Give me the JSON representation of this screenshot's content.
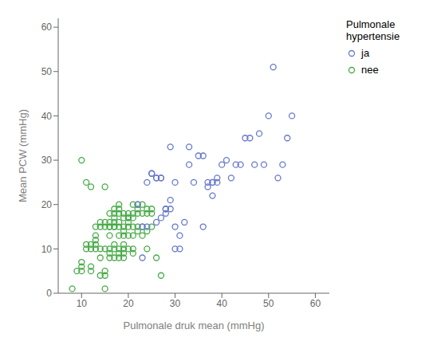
{
  "chart_data": {
    "type": "scatter",
    "title": "",
    "xlabel": "Pulmonale druk mean (mmHg)",
    "ylabel": "Mean PCW (mmHg)",
    "legend_title": "Pulmonale\nhypertensie",
    "xlim": [
      5,
      63
    ],
    "ylim": [
      0,
      62
    ],
    "xticks": [
      10,
      20,
      30,
      40,
      50,
      60
    ],
    "yticks": [
      0,
      10,
      20,
      30,
      40,
      50,
      60
    ],
    "grid": false,
    "marker": "circle",
    "series": [
      {
        "name": "ja",
        "color": "#6677cc",
        "x": [
          22,
          23,
          24,
          25,
          26,
          26,
          27,
          27,
          28,
          28,
          29,
          29,
          30,
          30,
          31,
          31,
          32,
          33,
          33,
          34,
          35,
          36,
          37,
          38,
          38,
          39,
          40,
          41,
          42,
          43,
          44,
          45,
          46,
          47,
          48,
          49,
          50,
          51,
          52,
          53,
          54,
          55,
          36,
          37,
          38,
          39,
          23,
          24,
          25,
          26,
          27,
          28,
          29,
          30
        ],
        "y": [
          20,
          15,
          15,
          27,
          16,
          26,
          17,
          26,
          18,
          19,
          19,
          21,
          10,
          25,
          10,
          13,
          16,
          33,
          29,
          25,
          31,
          31,
          25,
          22,
          25,
          26,
          29,
          30,
          26,
          29,
          29,
          35,
          35,
          29,
          36,
          29,
          40,
          51,
          26,
          29,
          35,
          40,
          15,
          24,
          25,
          25,
          8,
          25,
          27,
          26,
          26,
          19,
          33,
          15
        ]
      },
      {
        "name": "nee",
        "color": "#44aa44",
        "x": [
          8,
          9,
          10,
          10,
          10,
          11,
          11,
          12,
          12,
          12,
          12,
          13,
          13,
          13,
          13,
          14,
          14,
          14,
          14,
          15,
          15,
          15,
          15,
          15,
          15,
          16,
          16,
          16,
          16,
          16,
          16,
          16,
          17,
          17,
          17,
          17,
          17,
          17,
          17,
          17,
          18,
          18,
          18,
          18,
          18,
          18,
          18,
          18,
          19,
          19,
          19,
          19,
          19,
          19,
          19,
          19,
          20,
          20,
          20,
          20,
          20,
          20,
          21,
          21,
          21,
          21,
          21,
          21,
          22,
          22,
          22,
          22,
          22,
          23,
          23,
          23,
          23,
          24,
          24,
          24,
          24,
          25,
          25,
          25,
          26,
          27,
          10,
          11,
          12,
          13,
          14,
          15,
          16,
          17,
          18,
          19,
          20,
          21
        ],
        "y": [
          1,
          5,
          5,
          6,
          7,
          10,
          11,
          5,
          6,
          10,
          11,
          10,
          11,
          12,
          15,
          8,
          10,
          15,
          16,
          4,
          5,
          10,
          15,
          16,
          24,
          8,
          9,
          10,
          13,
          15,
          16,
          18,
          8,
          10,
          11,
          15,
          16,
          17,
          18,
          19,
          8,
          9,
          10,
          13,
          15,
          16,
          18,
          19,
          8,
          9,
          10,
          13,
          14,
          15,
          17,
          18,
          10,
          13,
          15,
          16,
          17,
          18,
          10,
          13,
          15,
          17,
          18,
          20,
          14,
          15,
          18,
          19,
          20,
          13,
          15,
          18,
          20,
          10,
          14,
          18,
          19,
          15,
          18,
          19,
          8,
          4,
          30,
          25,
          24,
          13,
          4,
          1,
          15,
          15,
          20,
          11,
          17,
          9
        ]
      }
    ]
  }
}
